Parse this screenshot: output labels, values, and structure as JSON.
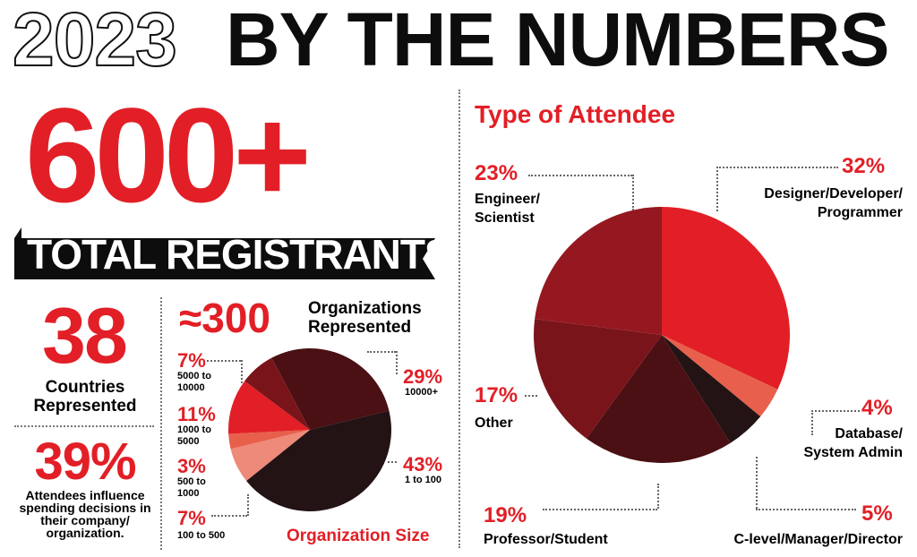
{
  "header": {
    "year": "2023",
    "rest": "BY THE NUMBERS"
  },
  "registrants": {
    "value": "600+",
    "label": "TOTAL REGISTRANTS"
  },
  "countries": {
    "value": "38",
    "label": "Countries Represented"
  },
  "influence": {
    "value": "39%",
    "label": "Attendees influence spending decisions in their company/ organization."
  },
  "organizations": {
    "value": "≈300",
    "label": "Organizations Represented"
  },
  "colors": {
    "red": "#e21f26",
    "dark_red": "#951820",
    "maroon": "#7a141b",
    "dark_brown": "#4a1013",
    "near_black": "#231315",
    "salmon": "#e8604c",
    "light_salmon": "#ee8a7a"
  },
  "chart_data": [
    {
      "type": "pie",
      "title": "Organization Size",
      "slices": [
        {
          "pct_label": "29%",
          "name": "10000+",
          "value": 29,
          "color": "#4a1013"
        },
        {
          "pct_label": "43%",
          "name": "1 to 100",
          "value": 43,
          "color": "#231315"
        },
        {
          "pct_label": "7%",
          "name": "100 to 500",
          "value": 7,
          "color": "#ee8a7a"
        },
        {
          "pct_label": "3%",
          "name": "500 to 1000",
          "value": 3,
          "color": "#e8604c"
        },
        {
          "pct_label": "11%",
          "name": "1000 to 5000",
          "value": 11,
          "color": "#e21f26"
        },
        {
          "pct_label": "7%",
          "name": "5000 to 10000",
          "value": 7,
          "color": "#7a141b"
        }
      ]
    },
    {
      "type": "pie",
      "title": "Type of Attendee",
      "slices": [
        {
          "pct_label": "32%",
          "name": "Designer/Developer/ Programmer",
          "value": 32,
          "color": "#e21f26"
        },
        {
          "pct_label": "4%",
          "name": "Database/ System Admin",
          "value": 4,
          "color": "#e8604c"
        },
        {
          "pct_label": "5%",
          "name": "C-level/Manager/Director",
          "value": 5,
          "color": "#231315"
        },
        {
          "pct_label": "19%",
          "name": "Professor/Student",
          "value": 19,
          "color": "#4a1013"
        },
        {
          "pct_label": "17%",
          "name": "Other",
          "value": 17,
          "color": "#7a141b"
        },
        {
          "pct_label": "23%",
          "name": "Engineer/ Scientist",
          "value": 23,
          "color": "#951820"
        }
      ]
    }
  ]
}
